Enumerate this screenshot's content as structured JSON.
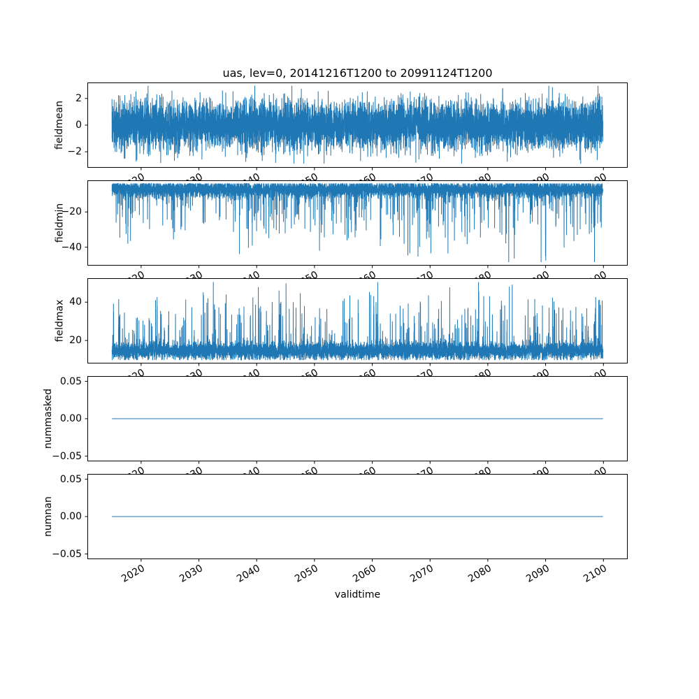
{
  "figure": {
    "title": "uas, lev=0, 20141216T1200 to 20991124T1200",
    "xlabel": "validtime",
    "background_color": "#ffffff",
    "line_color": "#1f77b4",
    "axis_color": "#000000"
  },
  "chart_data": [
    {
      "type": "line",
      "ylabel": "fieldmean",
      "x_start": 2014.96,
      "x_end": 2099.9,
      "xlim": [
        2010.7,
        2104.2
      ],
      "ylim": [
        -3.2,
        3.2
      ],
      "ytick_values": [
        2,
        0,
        -2
      ],
      "ytick_labels": [
        "2",
        "0",
        "−2"
      ],
      "xtick_values": [
        2020,
        2030,
        2040,
        2050,
        2060,
        2070,
        2080,
        2090,
        2100
      ],
      "xtick_labels": [
        "2020",
        "2030",
        "2040",
        "2050",
        "2060",
        "2070",
        "2080",
        "2090",
        "2100"
      ],
      "n_points": 8000,
      "summary": "noisy series centered on 0, typical band −2 to 2, extremes about ±2.9",
      "gen": {
        "kind": "noise",
        "seed": 42,
        "base": 0,
        "std": 0.9,
        "dir": 0,
        "clip": [
          -2.9,
          2.95
        ]
      }
    },
    {
      "type": "line",
      "ylabel": "fieldmin",
      "x_start": 2014.96,
      "x_end": 2099.9,
      "xlim": [
        2010.7,
        2104.2
      ],
      "ylim": [
        -50.5,
        -2
      ],
      "ytick_values": [
        -20,
        -40
      ],
      "ytick_labels": [
        "−20",
        "−40"
      ],
      "xtick_values": [
        2020,
        2030,
        2040,
        2050,
        2060,
        2070,
        2080,
        2090,
        2100
      ],
      "xtick_labels": [
        "2020",
        "2030",
        "2040",
        "2050",
        "2060",
        "2070",
        "2080",
        "2090",
        "2100"
      ],
      "n_points": 8000,
      "summary": "dense band between about −4 and −13 with frequent downward spikes to −20…−35 and rare spikes near −48",
      "gen": {
        "kind": "noise",
        "seed": 1234,
        "base": -7,
        "std": 2.3,
        "dir": -1,
        "clip": [
          -48.5,
          -3.8
        ],
        "spike": {
          "p": 0.06,
          "pow": 1.5,
          "scale": 28,
          "p_big": 0.004,
          "big_min": 25,
          "big_range": 16
        }
      }
    },
    {
      "type": "line",
      "ylabel": "fieldmax",
      "x_start": 2014.96,
      "x_end": 2099.9,
      "xlim": [
        2010.7,
        2104.2
      ],
      "ylim": [
        8,
        52.5
      ],
      "ytick_values": [
        40,
        20
      ],
      "ytick_labels": [
        "40",
        "20"
      ],
      "xtick_values": [
        2020,
        2030,
        2040,
        2050,
        2060,
        2070,
        2080,
        2090,
        2100
      ],
      "xtick_labels": [
        "2020",
        "2030",
        "2040",
        "2050",
        "2060",
        "2070",
        "2080",
        "2090",
        "2100"
      ],
      "n_points": 8000,
      "summary": "dense band between about 10 and 20 with frequent upward spikes to 25…40 and rare spikes near 50",
      "gen": {
        "kind": "noise",
        "seed": 999,
        "base": 14.5,
        "std": 2.3,
        "dir": 1,
        "clip": [
          9.8,
          50.5
        ],
        "spike": {
          "p": 0.06,
          "pow": 1.5,
          "scale": 26,
          "p_big": 0.004,
          "big_min": 22,
          "big_range": 14
        }
      }
    },
    {
      "type": "line",
      "ylabel": "nummasked",
      "x_start": 2014.96,
      "x_end": 2099.9,
      "xlim": [
        2010.7,
        2104.2
      ],
      "ylim": [
        -0.057,
        0.057
      ],
      "ytick_values": [
        0.05,
        0,
        -0.05
      ],
      "ytick_labels": [
        "0.05",
        "0.00",
        "−0.05"
      ],
      "xtick_values": [
        2020,
        2030,
        2040,
        2050,
        2060,
        2070,
        2080,
        2090,
        2100
      ],
      "xtick_labels": [
        "2020",
        "2030",
        "2040",
        "2050",
        "2060",
        "2070",
        "2080",
        "2090",
        "2100"
      ],
      "n_points": 2,
      "summary": "constant value 0 over the whole period",
      "gen": {
        "kind": "constant",
        "value": 0
      }
    },
    {
      "type": "line",
      "ylabel": "numnan",
      "x_start": 2014.96,
      "x_end": 2099.9,
      "xlim": [
        2010.7,
        2104.2
      ],
      "ylim": [
        -0.057,
        0.057
      ],
      "ytick_values": [
        0.05,
        0,
        -0.05
      ],
      "ytick_labels": [
        "0.05",
        "0.00",
        "−0.05"
      ],
      "xtick_values": [
        2020,
        2030,
        2040,
        2050,
        2060,
        2070,
        2080,
        2090,
        2100
      ],
      "xtick_labels": [
        "2020",
        "2030",
        "2040",
        "2050",
        "2060",
        "2070",
        "2080",
        "2090",
        "2100"
      ],
      "n_points": 2,
      "summary": "constant value 0 over the whole period",
      "gen": {
        "kind": "constant",
        "value": 0
      }
    }
  ]
}
